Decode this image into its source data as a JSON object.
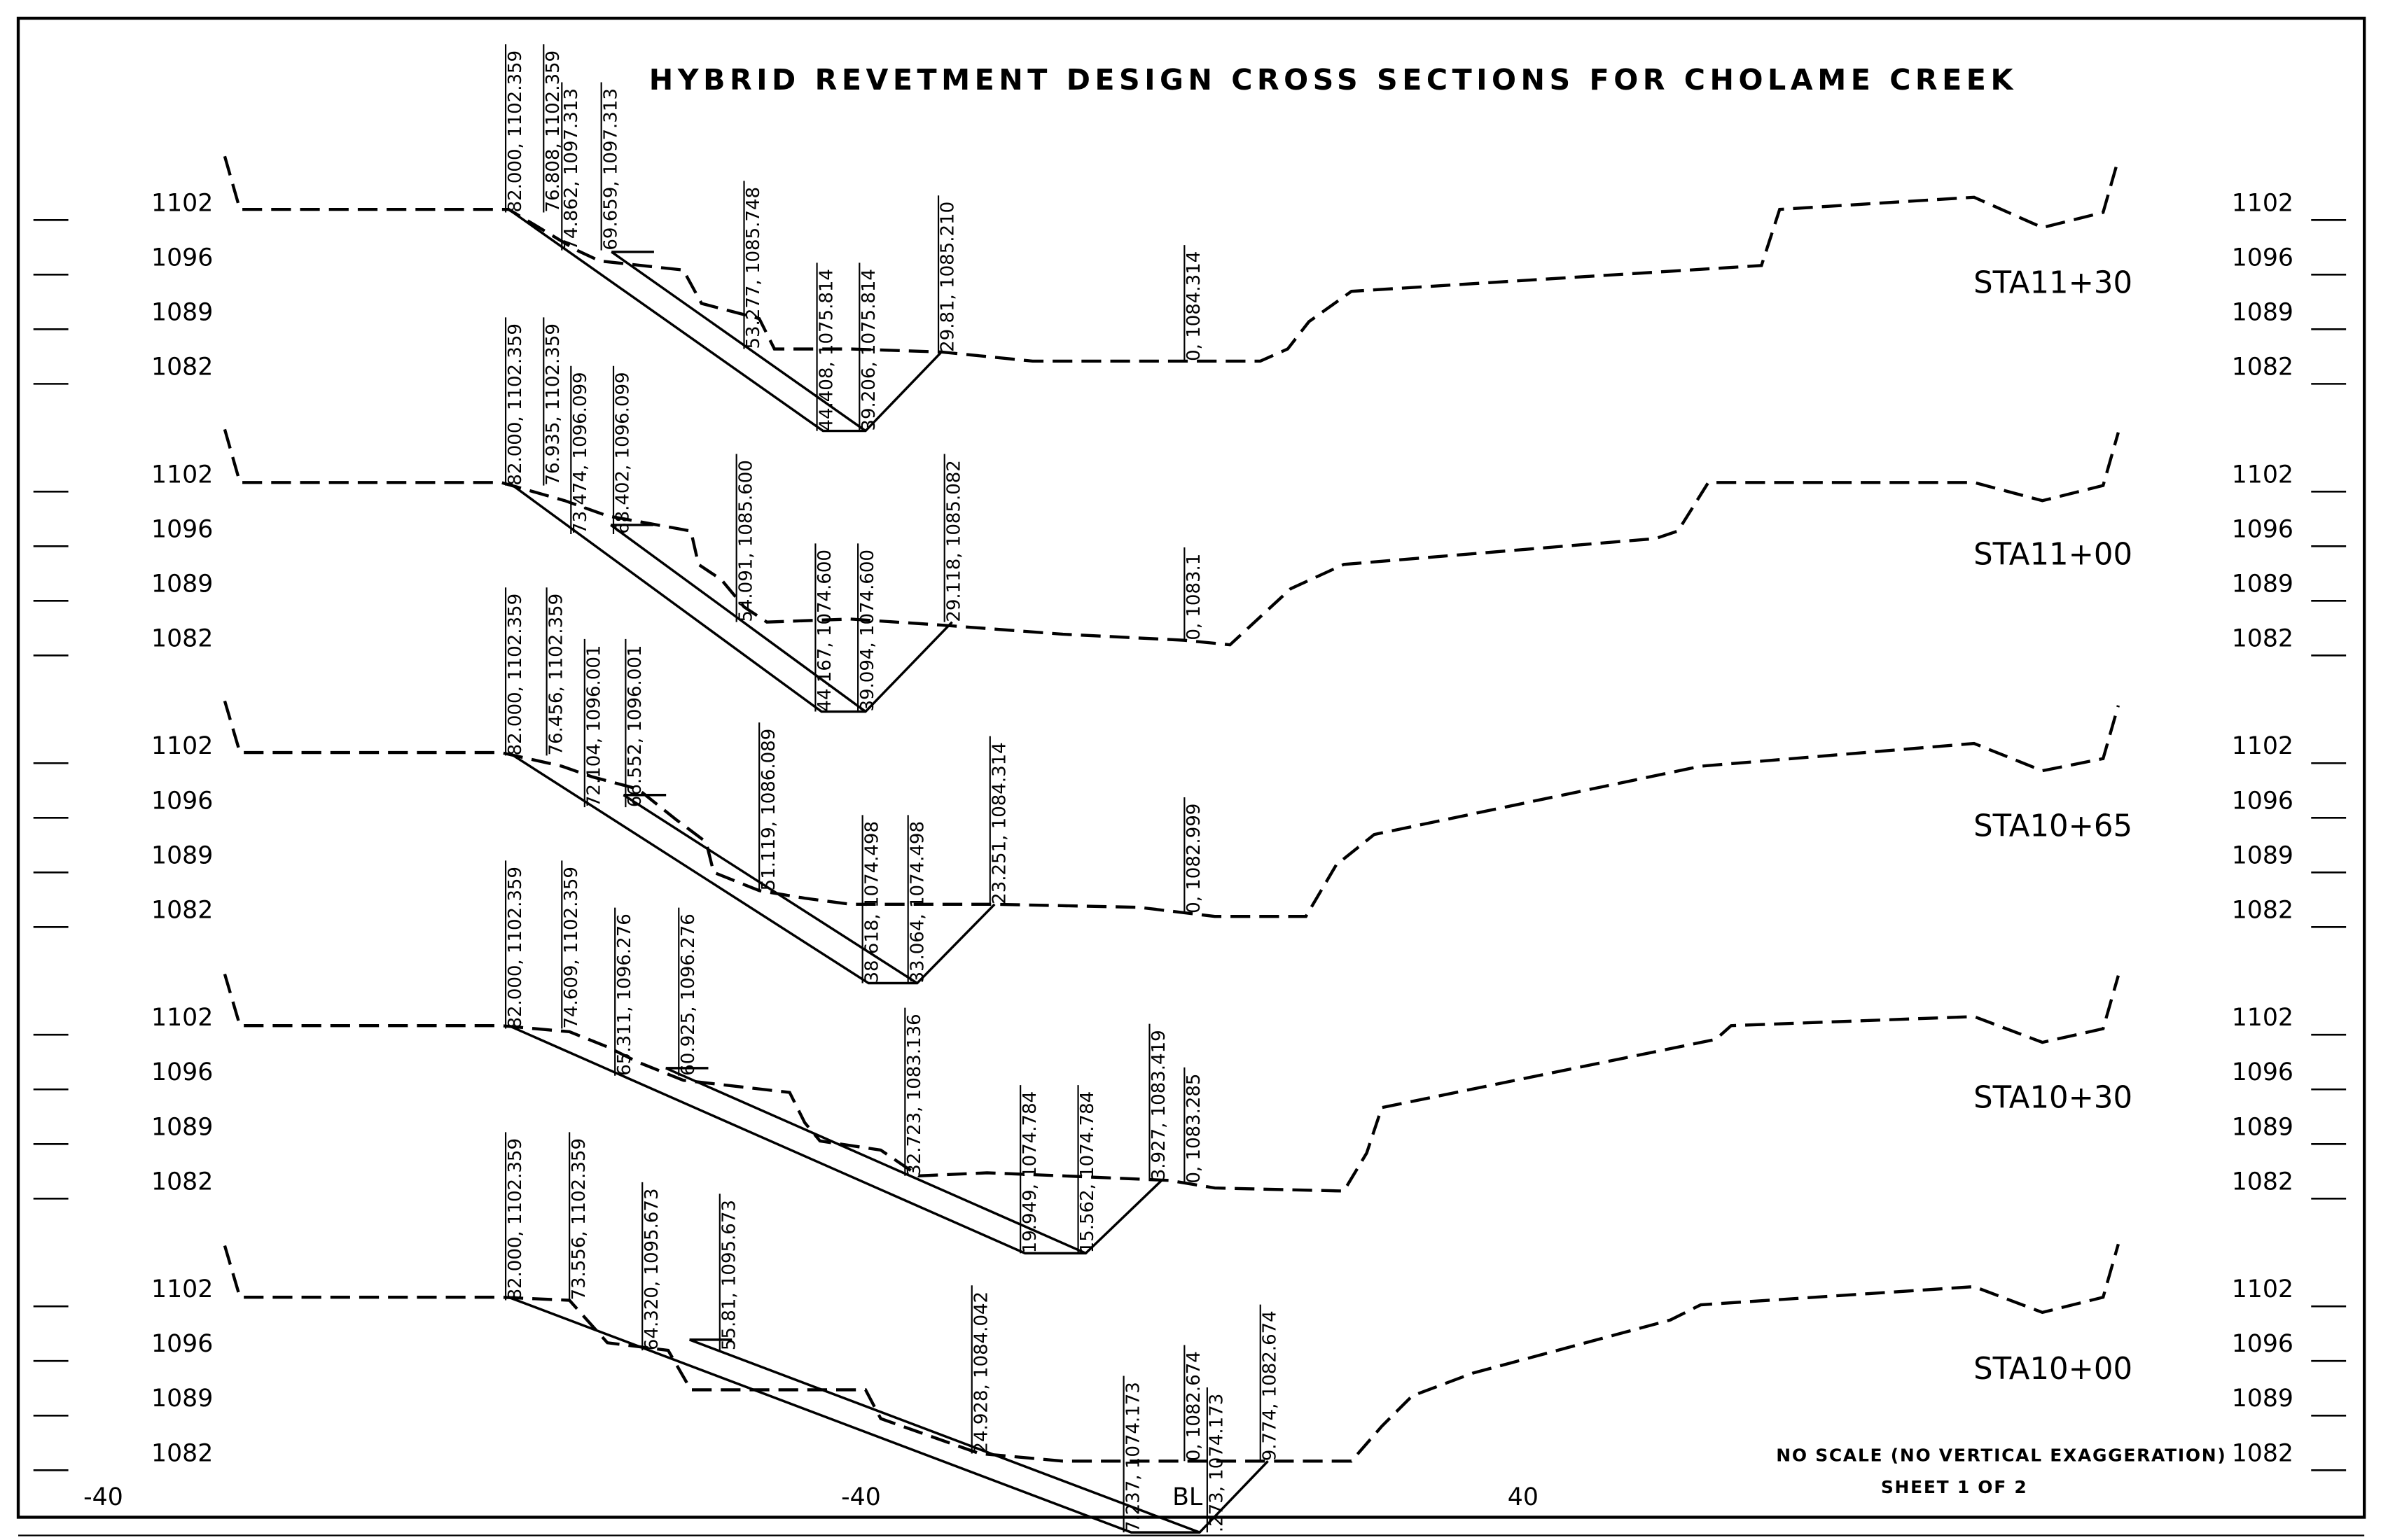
{
  "title": "HYBRID REVETMENT DESIGN CROSS SECTIONS FOR CHOLAME CREEK",
  "elevation_labels": [
    "1102",
    "1096",
    "1089",
    "1082"
  ],
  "sections": [
    {
      "station": "STA11+30",
      "points": [
        "82.000, 1102.359",
        "76.808, 1102.359",
        "74.862, 1097.313",
        "69.659, 1097.313",
        "53.277, 1085.748",
        "44.408, 1075.814",
        "39.206, 1075.814",
        "29.81, 1085.210",
        "0, 1084.314"
      ]
    },
    {
      "station": "STA11+00",
      "points": [
        "82.000, 1102.359",
        "76.935, 1102.359",
        "73.474, 1096.099",
        "68.402, 1096.099",
        "54.091, 1085.600",
        "44.167, 1074.600",
        "39.094, 1074.600",
        "29.118, 1085.082",
        "0, 1083.1"
      ]
    },
    {
      "station": "STA10+65",
      "points": [
        "82.000, 1102.359",
        "76.456, 1102.359",
        "72.104, 1096.001",
        "66.552, 1096.001",
        "51.119, 1086.089",
        "38.618, 1074.498",
        "33.064, 1074.498",
        "23.251, 1084.314",
        "0, 1082.999"
      ]
    },
    {
      "station": "STA10+30",
      "points": [
        "82.000, 1102.359",
        "74.609, 1102.359",
        "65.311, 1096.276",
        "60.925, 1096.276",
        "32.723, 1083.136",
        "19.949, 1074.784",
        "15.562, 1074.784",
        "3.927, 1083.419",
        "0, 1083.285"
      ]
    },
    {
      "station": "STA10+00",
      "points": [
        "82.000, 1102.359",
        "73.556, 1102.359",
        "64.320, 1095.673",
        "55.81, 1095.673",
        "24.928, 1084.042",
        "7.237, 1074.173",
        ".273, 1074.173",
        "9.774, 1082.674",
        "0, 1082.674"
      ]
    }
  ],
  "x_axis_labels": [
    "-40",
    "-40",
    "BL",
    "40"
  ],
  "note": "NO SCALE (NO VERTICAL EXAGGERATION)",
  "sheet": "SHEET 1 OF 2"
}
